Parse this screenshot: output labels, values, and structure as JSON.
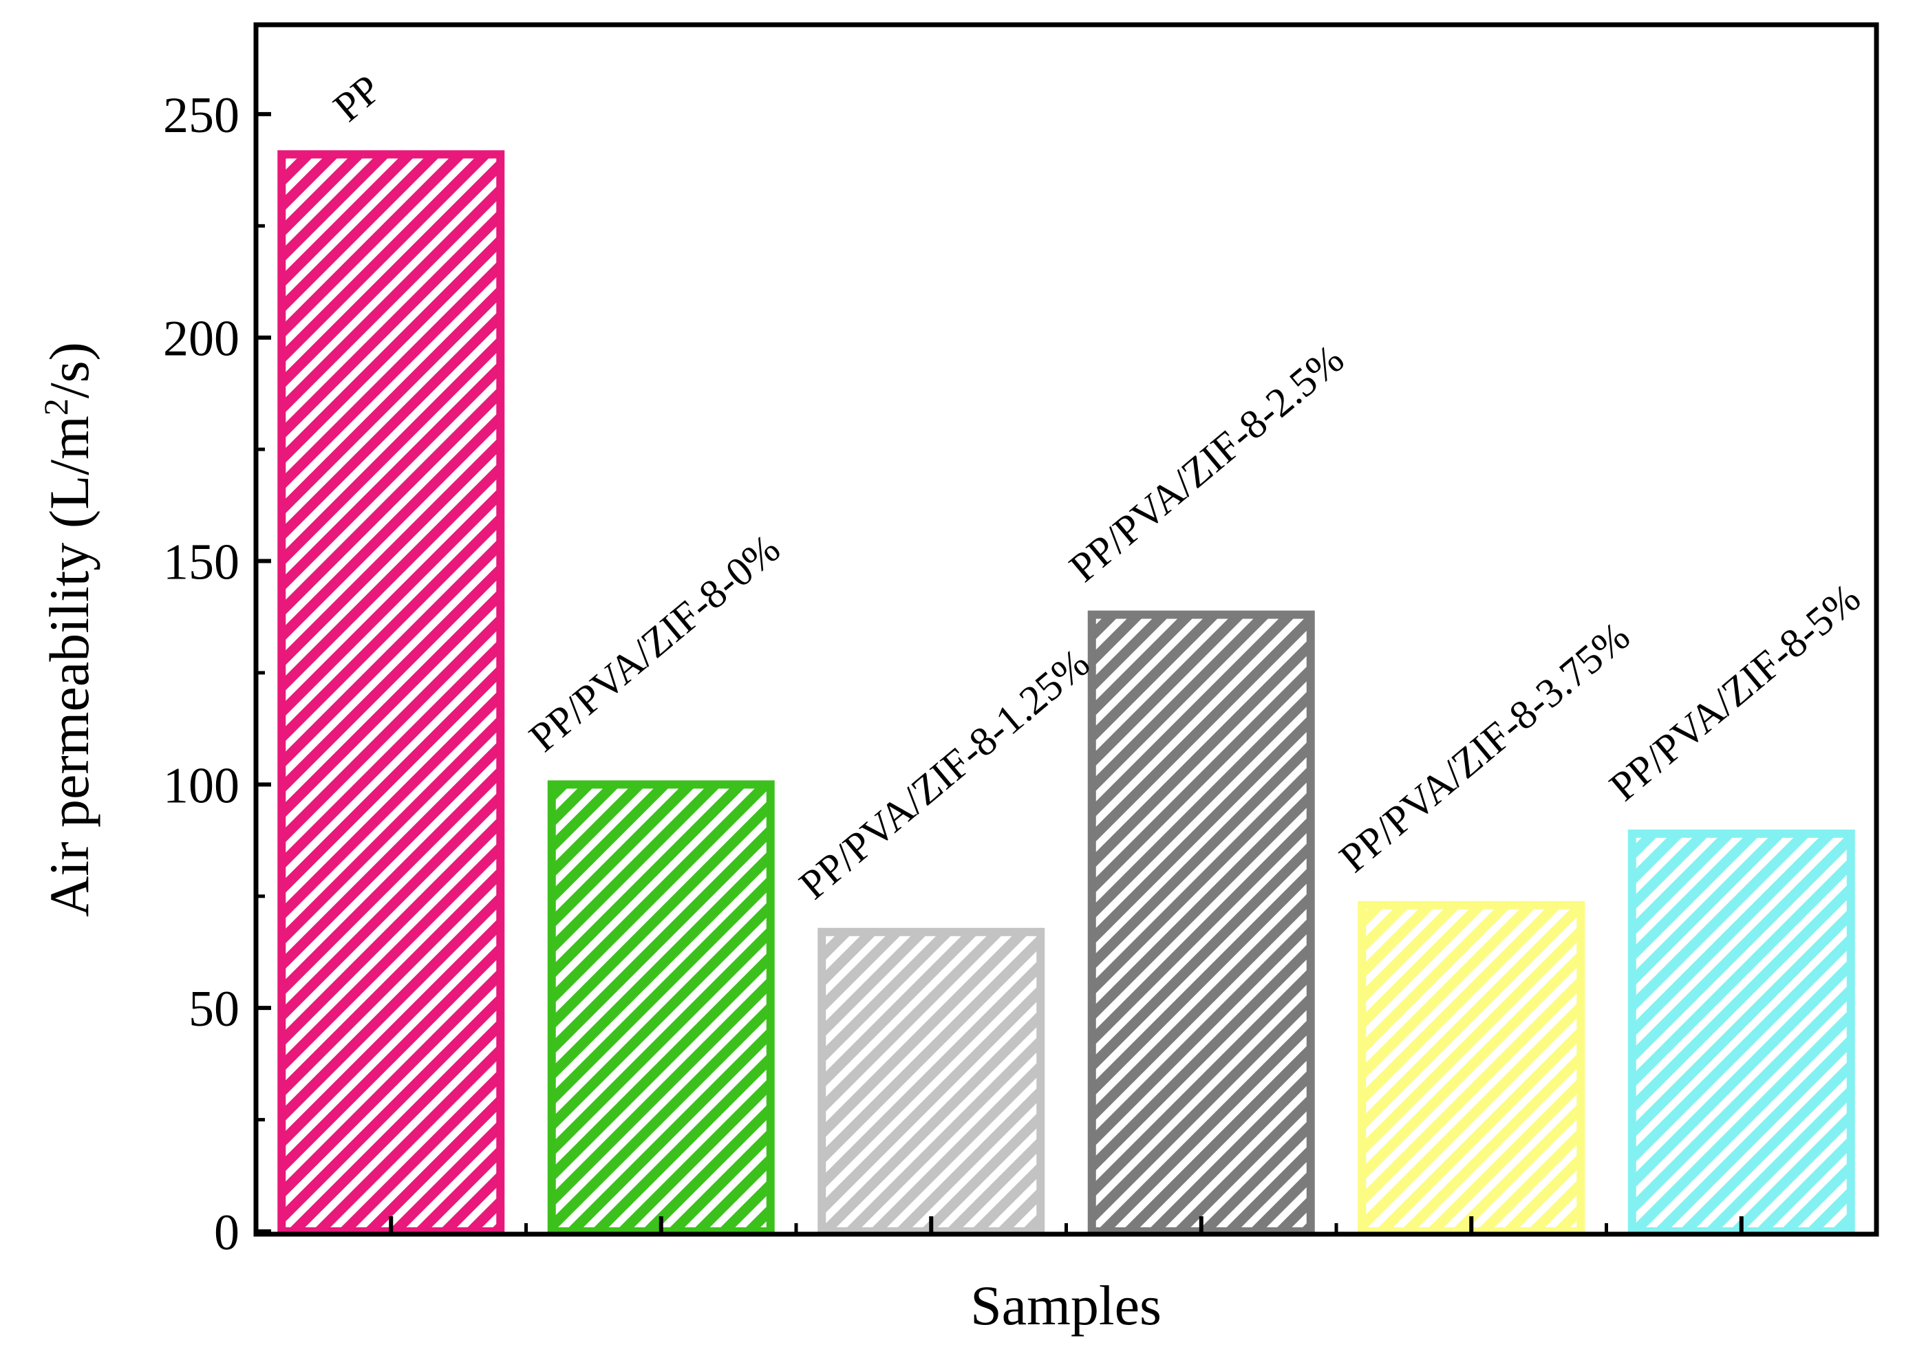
{
  "chart_data": {
    "type": "bar",
    "title": "",
    "xlabel": "Samples",
    "ylabel": {
      "text_before": "Air permeability (L/m",
      "superscript": "2",
      "text_after": "/s)"
    },
    "ylim": [
      0,
      270
    ],
    "yticks": [
      0,
      50,
      100,
      150,
      200,
      250
    ],
    "yticks_labels": [
      "0",
      "50",
      "100",
      "150",
      "200",
      "250"
    ],
    "grid": false,
    "legend": "none",
    "categories": [
      "PP",
      "PP/PVA/ZIF-8-0%",
      "PP/PVA/ZIF-8-1.25%",
      "PP/PVA/ZIF-8-2.5%",
      "PP/PVA/ZIF-8-3.75%",
      "PP/PVA/ZIF-8-5%"
    ],
    "values": [
      241,
      100,
      67,
      138,
      73,
      89
    ],
    "colors": [
      "#e8197a",
      "#3cc11c",
      "#c3c3c3",
      "#7b7b7b",
      "#fcfc82",
      "#83f1f1"
    ],
    "fill_pattern": "diagonal-hatch"
  }
}
